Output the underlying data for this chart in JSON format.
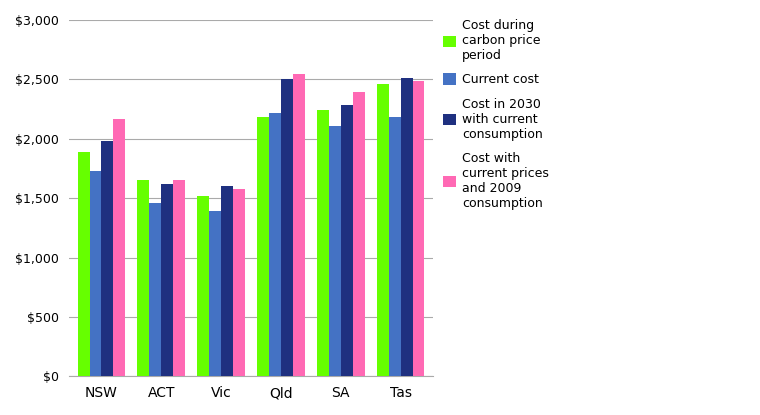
{
  "categories": [
    "NSW",
    "ACT",
    "Vic",
    "Qld",
    "SA",
    "Tas"
  ],
  "series": {
    "Cost during carbon price period": [
      1890,
      1650,
      1520,
      2185,
      2240,
      2460
    ],
    "Current cost": [
      1730,
      1460,
      1390,
      2220,
      2110,
      2180
    ],
    "Cost in 2030 with current consumption": [
      1980,
      1620,
      1600,
      2500,
      2285,
      2510
    ],
    "Cost with current prices and 2009 consumption": [
      2170,
      1650,
      1580,
      2545,
      2395,
      2490
    ]
  },
  "colors": {
    "Cost during carbon price period": "#66FF00",
    "Current cost": "#4472C4",
    "Cost in 2030 with current consumption": "#1F3080",
    "Cost with current prices and 2009 consumption": "#FF69B4"
  },
  "legend_labels": [
    "Cost during\ncarbon price\nperiod",
    "Current cost",
    "Cost in 2030\nwith current\nconsumption",
    "Cost with\ncurrent prices\nand 2009\nconsumption"
  ],
  "ylim": [
    0,
    3000
  ],
  "yticks": [
    0,
    500,
    1000,
    1500,
    2000,
    2500,
    3000
  ],
  "background_color": "#FFFFFF",
  "grid_color": "#AAAAAA",
  "bar_width": 0.2,
  "group_width": 0.88
}
